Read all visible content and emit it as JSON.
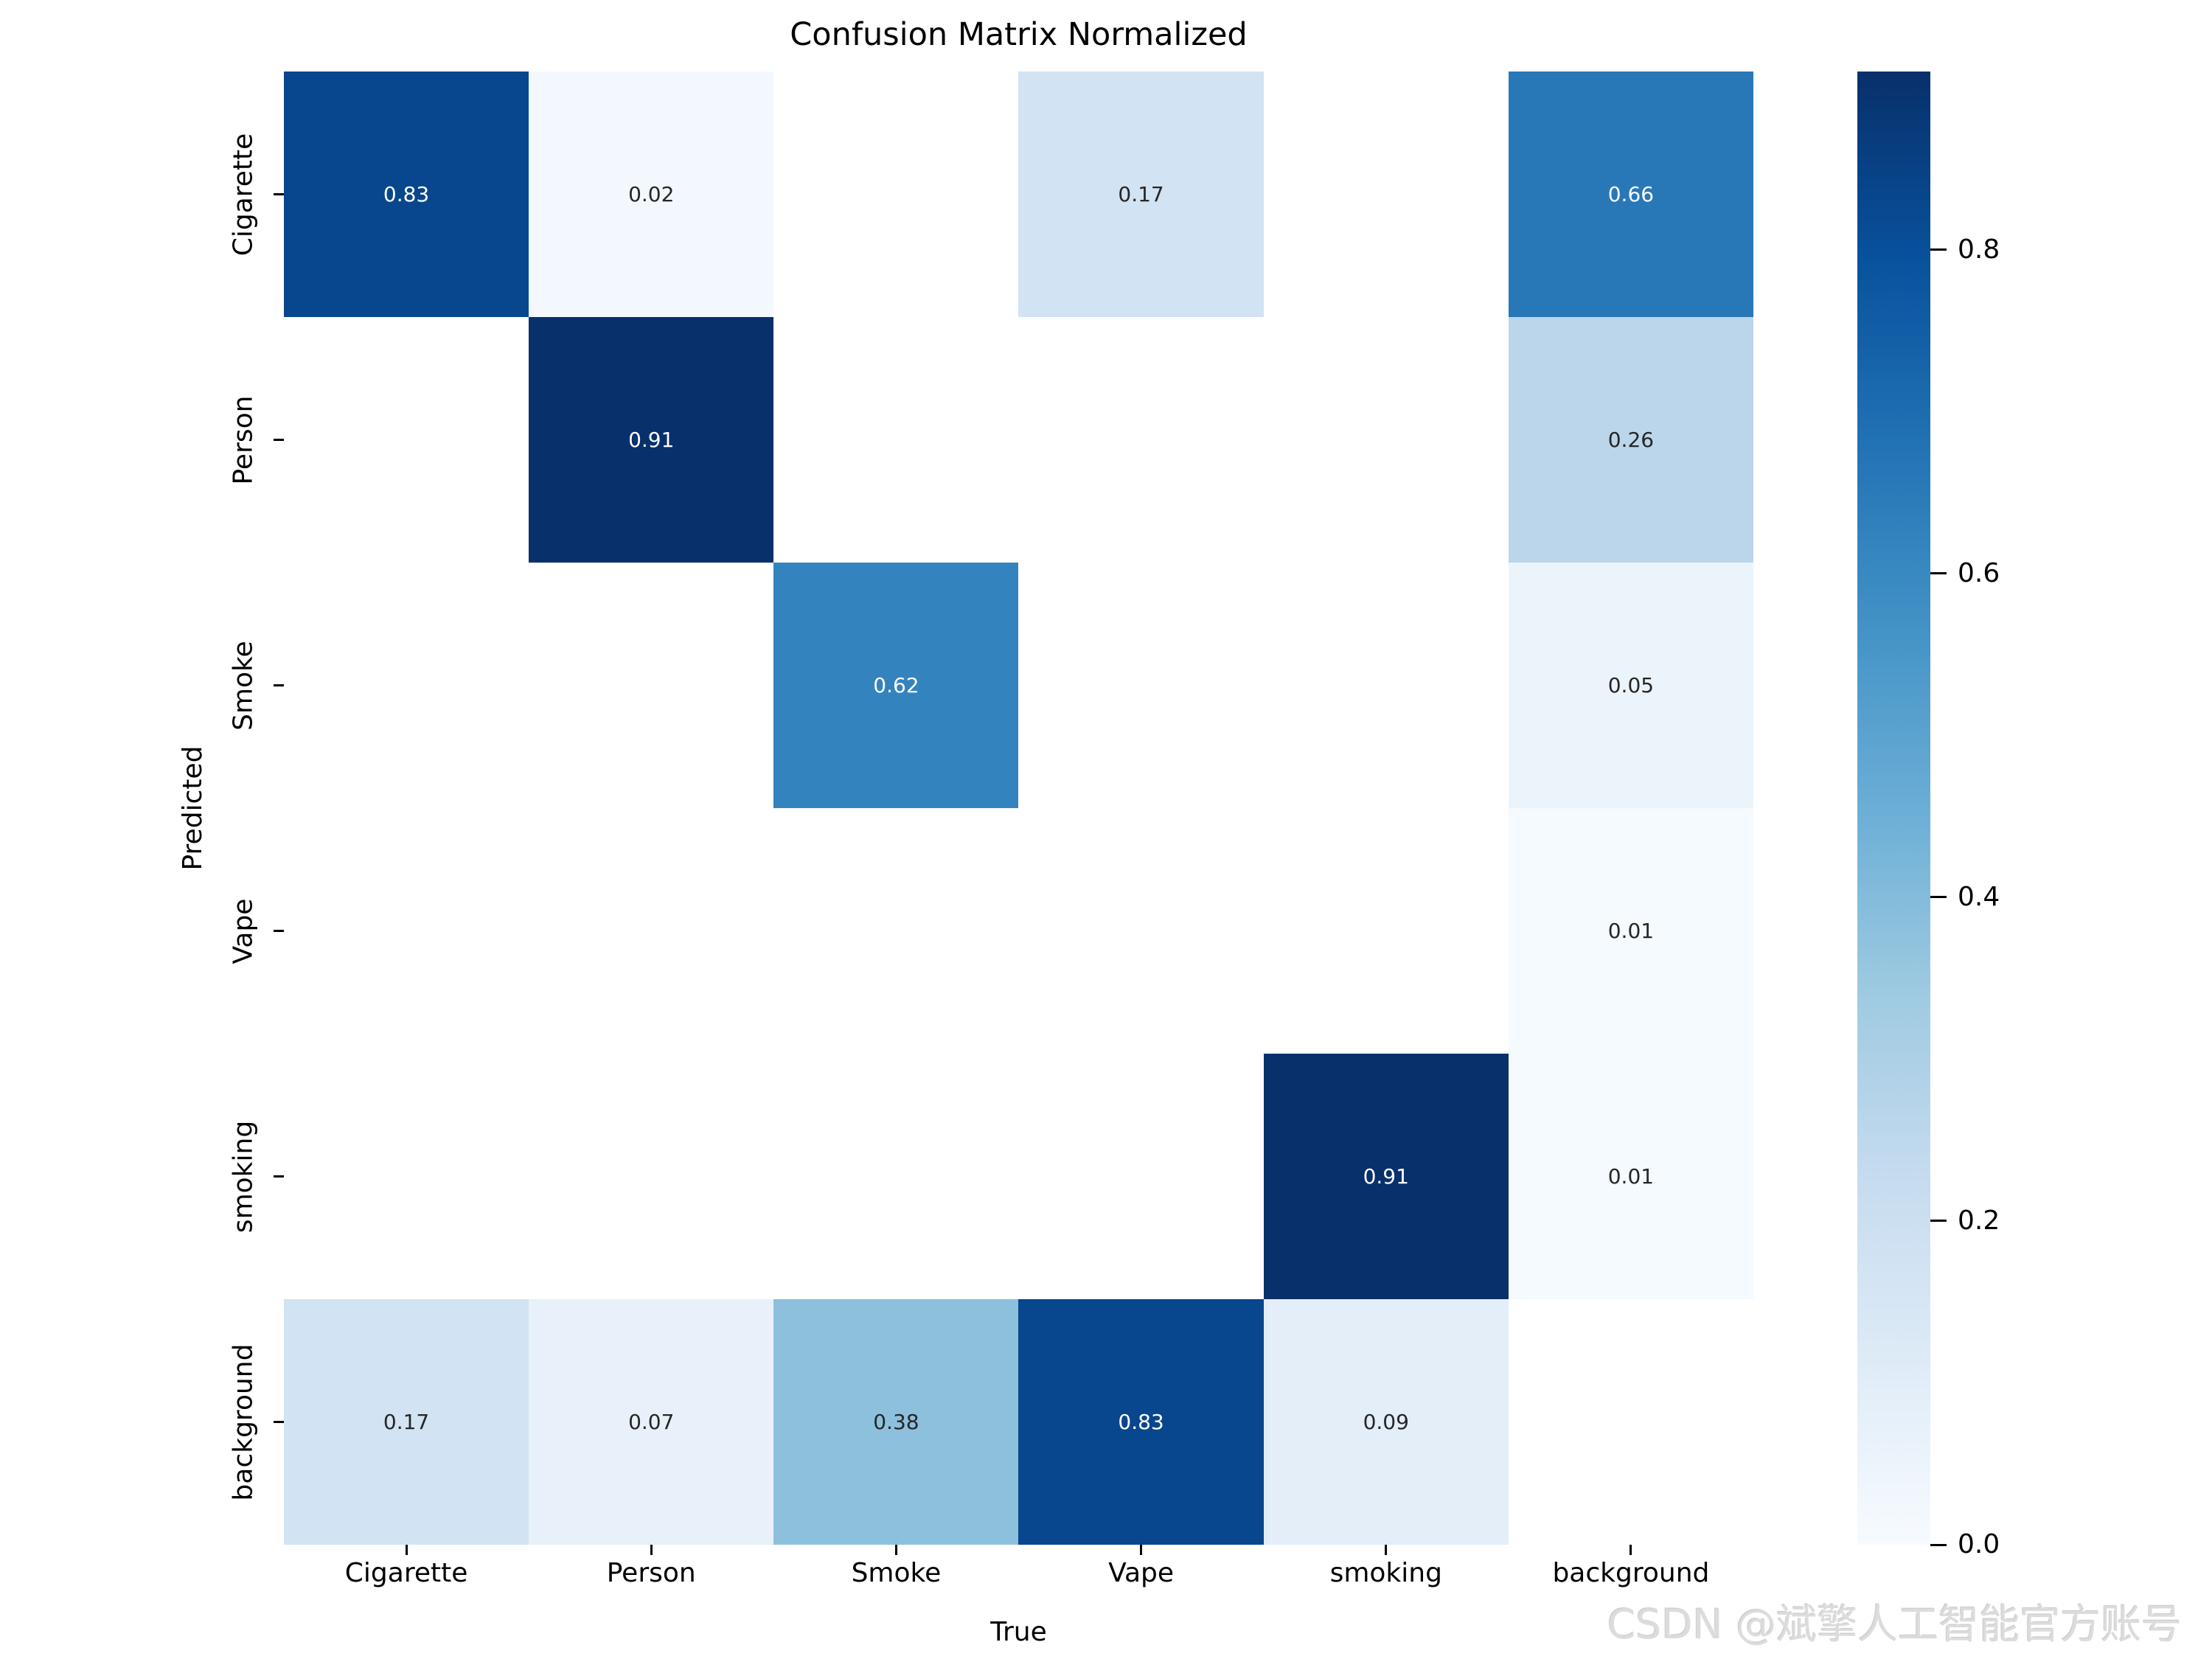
{
  "watermark": "CSDN @斌擎人工智能官方账号",
  "chart_data": {
    "type": "heatmap",
    "title": "Confusion Matrix Normalized",
    "xlabel": "True",
    "ylabel": "Predicted",
    "x_categories": [
      "Cigarette",
      "Person",
      "Smoke",
      "Vape",
      "smoking",
      "background"
    ],
    "y_categories": [
      "Cigarette",
      "Person",
      "Smoke",
      "Vape",
      "smoking",
      "background"
    ],
    "rows": [
      [
        0.83,
        0.02,
        null,
        0.17,
        null,
        0.66
      ],
      [
        null,
        0.91,
        null,
        null,
        null,
        0.26
      ],
      [
        null,
        null,
        0.62,
        null,
        null,
        0.05
      ],
      [
        null,
        null,
        null,
        null,
        null,
        0.01
      ],
      [
        null,
        null,
        null,
        null,
        0.91,
        0.01
      ],
      [
        0.17,
        0.07,
        0.38,
        0.83,
        0.09,
        null
      ]
    ],
    "vmin": 0.0,
    "vmax": 0.91,
    "colormap": "Blues",
    "blank_cell_color": "#ffffff",
    "annotation_precision": 2,
    "annotation_dark_color": "#262626",
    "annotation_light_color": "#ffffff",
    "colorbar": {
      "position": "right",
      "tick_labels": [
        "0.0",
        "0.2",
        "0.4",
        "0.6",
        "0.8"
      ],
      "tick_values": [
        0.0,
        0.2,
        0.4,
        0.6,
        0.8
      ]
    },
    "grid": false,
    "legend": false
  }
}
